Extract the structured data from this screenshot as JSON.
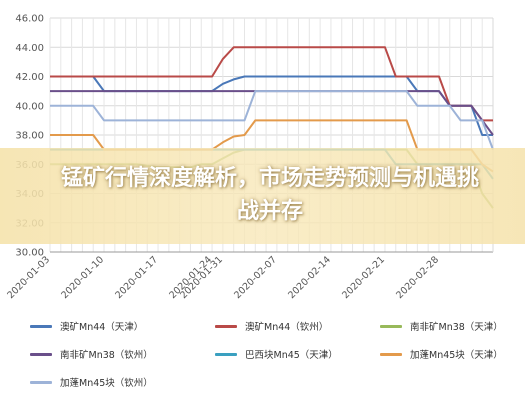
{
  "headline": "锰矿行情深度解析，市场走势预测与机遇挑战并存",
  "chart_data": {
    "type": "line",
    "x": [
      "2020-01-03",
      "2020-01-06",
      "2020-01-07",
      "2020-01-08",
      "2020-01-09",
      "2020-01-10",
      "2020-01-13",
      "2020-01-14",
      "2020-01-15",
      "2020-01-16",
      "2020-01-17",
      "2020-01-20",
      "2020-01-21",
      "2020-01-22",
      "2020-01-23",
      "2020-01-24",
      "2020-01-31",
      "2020-02-03",
      "2020-02-04",
      "2020-02-05",
      "2020-02-06",
      "2020-02-07",
      "2020-02-10",
      "2020-02-11",
      "2020-02-12",
      "2020-02-13",
      "2020-02-14",
      "2020-02-17",
      "2020-02-18",
      "2020-02-19",
      "2020-02-20",
      "2020-02-21",
      "2020-02-24",
      "2020-02-25",
      "2020-02-26",
      "2020-02-27",
      "2020-02-28",
      "2020-03-02",
      "2020-03-03",
      "2020-03-04",
      "2020-03-05",
      "2020-03-06"
    ],
    "xticks": [
      "2020-01-03",
      "2020-01-10",
      "2020-01-17",
      "2020-01-24",
      "2020-01-31",
      "2020-02-07",
      "2020-02-14",
      "2020-02-21",
      "2020-02-28"
    ],
    "ylim": [
      30,
      46
    ],
    "yticks": [
      "30.00",
      "32.00",
      "34.00",
      "36.00",
      "38.00",
      "40.00",
      "42.00",
      "44.00",
      "46.00"
    ],
    "grid": true,
    "legend_position": "bottom",
    "series": [
      {
        "name": "澳矿Mn44（天津）",
        "color": "#4a78b8",
        "values": [
          42,
          42,
          42,
          42,
          42,
          41,
          41,
          41,
          41,
          41,
          41,
          41,
          41,
          41,
          41,
          41,
          41.5,
          41.8,
          42,
          42,
          42,
          42,
          42,
          42,
          42,
          42,
          42,
          42,
          42,
          42,
          42,
          42,
          42,
          42,
          41,
          41,
          41,
          40,
          40,
          40,
          38,
          38
        ]
      },
      {
        "name": "澳矿Mn44（钦州）",
        "color": "#b94a48",
        "values": [
          42,
          42,
          42,
          42,
          42,
          42,
          42,
          42,
          42,
          42,
          42,
          42,
          42,
          42,
          42,
          42,
          43.2,
          44,
          44,
          44,
          44,
          44,
          44,
          44,
          44,
          44,
          44,
          44,
          44,
          44,
          44,
          44,
          42,
          42,
          42,
          42,
          42,
          40,
          40,
          40,
          39,
          39
        ]
      },
      {
        "name": "南非矿Mn38（天津）",
        "color": "#98b95a",
        "values": [
          36,
          36,
          36,
          36,
          36,
          36,
          36,
          36,
          36,
          35.9,
          35.8,
          35.8,
          35.8,
          35.8,
          36,
          36,
          36.4,
          36.8,
          37,
          37,
          37,
          37,
          37,
          37,
          37,
          37,
          37,
          37,
          37,
          37,
          37,
          37,
          37,
          37,
          36,
          36,
          36,
          36,
          36,
          36,
          34,
          33
        ]
      },
      {
        "name": "南非矿Mn38（钦州）",
        "color": "#6a4f8a",
        "values": [
          41,
          41,
          41,
          41,
          41,
          41,
          41,
          41,
          41,
          41,
          41,
          41,
          41,
          41,
          41,
          41,
          41,
          41,
          41,
          41,
          41,
          41,
          41,
          41,
          41,
          41,
          41,
          41,
          41,
          41,
          41,
          41,
          41,
          41,
          41,
          41,
          41,
          40,
          40,
          40,
          39,
          38
        ]
      },
      {
        "name": "巴西块Mn45（天津）",
        "color": "#3aa0c0",
        "values": [
          37,
          37,
          37,
          37,
          37,
          37,
          37,
          37,
          37,
          37,
          37,
          37,
          37,
          37,
          37,
          37,
          37,
          37,
          37,
          37,
          37,
          37,
          37,
          37,
          37,
          37,
          37,
          37,
          37,
          37,
          37,
          37,
          36,
          36,
          36,
          36,
          36,
          36,
          36,
          36,
          36,
          35
        ]
      },
      {
        "name": "加蓬Mn45块（天津）",
        "color": "#e39a4b",
        "values": [
          38,
          38,
          38,
          38,
          38,
          37,
          37,
          37,
          37,
          37,
          37,
          37,
          37,
          37,
          37,
          37,
          37.5,
          37.9,
          38,
          39,
          39,
          39,
          39,
          39,
          39,
          39,
          39,
          39,
          39,
          39,
          39,
          39,
          39,
          39,
          37,
          37,
          37,
          37,
          37,
          37,
          36,
          35.5
        ]
      },
      {
        "name": "加蓬Mn45块（钦州）",
        "color": "#9db3d8",
        "values": [
          40,
          40,
          40,
          40,
          40,
          39,
          39,
          39,
          39,
          39,
          39,
          39,
          39,
          39,
          39,
          39,
          39,
          39,
          39,
          41,
          41,
          41,
          41,
          41,
          41,
          41,
          41,
          41,
          41,
          41,
          41,
          41,
          41,
          41,
          40,
          40,
          40,
          40,
          39,
          39,
          39,
          37
        ]
      }
    ]
  }
}
